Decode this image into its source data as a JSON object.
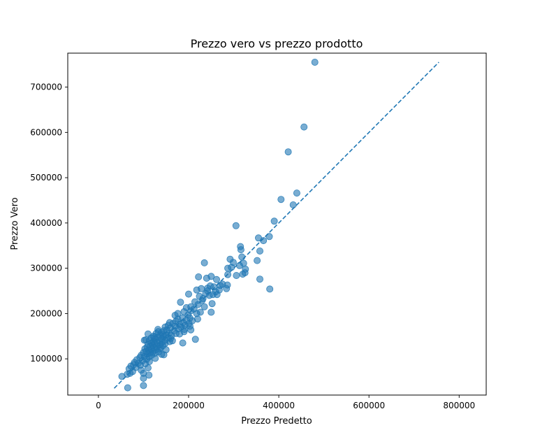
{
  "chart_data": {
    "type": "scatter",
    "title": "Prezzo vero vs prezzo prodotto",
    "xlabel": "Prezzo Predetto",
    "ylabel": "Prezzo Vero",
    "xlim": [
      -68000,
      860000
    ],
    "ylim": [
      20000,
      775000
    ],
    "xticks": [
      0,
      200000,
      400000,
      600000,
      800000
    ],
    "yticks": [
      100000,
      200000,
      300000,
      400000,
      500000,
      600000,
      700000
    ],
    "xtick_labels": [
      "0",
      "200000",
      "400000",
      "600000",
      "800000"
    ],
    "ytick_labels": [
      "100000",
      "200000",
      "300000",
      "400000",
      "500000",
      "600000",
      "700000"
    ],
    "grid": false,
    "color": "#1f77b4",
    "point_alpha": 0.6,
    "reference_line": {
      "style": "dashed",
      "from": [
        35000,
        35000
      ],
      "to": [
        755000,
        755000
      ]
    },
    "points": [
      [
        480000,
        755000
      ],
      [
        456000,
        612000
      ],
      [
        421000,
        557000
      ],
      [
        440000,
        466000
      ],
      [
        405000,
        452000
      ],
      [
        432000,
        440000
      ],
      [
        390000,
        404000
      ],
      [
        305000,
        394000
      ],
      [
        379000,
        370000
      ],
      [
        366000,
        361000
      ],
      [
        355000,
        367000
      ],
      [
        315000,
        348000
      ],
      [
        316000,
        341000
      ],
      [
        358000,
        338000
      ],
      [
        318000,
        325000
      ],
      [
        292000,
        320000
      ],
      [
        299000,
        313000
      ],
      [
        313000,
        306000
      ],
      [
        352000,
        317000
      ],
      [
        322000,
        311000
      ],
      [
        287000,
        300000
      ],
      [
        326000,
        298000
      ],
      [
        320000,
        287000
      ],
      [
        306000,
        284000
      ],
      [
        325000,
        290000
      ],
      [
        358000,
        276000
      ],
      [
        287000,
        286000
      ],
      [
        380000,
        254000
      ],
      [
        235000,
        312000
      ],
      [
        250000,
        282000
      ],
      [
        222000,
        281000
      ],
      [
        240000,
        278000
      ],
      [
        262000,
        275000
      ],
      [
        270000,
        262000
      ],
      [
        248000,
        261000
      ],
      [
        256000,
        259000
      ],
      [
        228000,
        255000
      ],
      [
        218000,
        252000
      ],
      [
        242000,
        250000
      ],
      [
        260000,
        248000
      ],
      [
        286000,
        263000
      ],
      [
        284000,
        255000
      ],
      [
        263000,
        242000
      ],
      [
        246000,
        240000
      ],
      [
        224000,
        238000
      ],
      [
        254000,
        242000
      ],
      [
        230000,
        229000
      ],
      [
        200000,
        243000
      ],
      [
        214000,
        226000
      ],
      [
        182000,
        225000
      ],
      [
        205000,
        215000
      ],
      [
        221000,
        220000
      ],
      [
        195000,
        213000
      ],
      [
        212000,
        210000
      ],
      [
        250000,
        203000
      ],
      [
        226000,
        203000
      ],
      [
        205000,
        206000
      ],
      [
        190000,
        204000
      ],
      [
        218000,
        200000
      ],
      [
        199000,
        197000
      ],
      [
        203000,
        190000
      ],
      [
        186000,
        190000
      ],
      [
        220000,
        188000
      ],
      [
        176000,
        188000
      ],
      [
        195000,
        185000
      ],
      [
        208000,
        184000
      ],
      [
        172000,
        183000
      ],
      [
        188000,
        180000
      ],
      [
        201000,
        178000
      ],
      [
        165000,
        178000
      ],
      [
        180000,
        176000
      ],
      [
        192000,
        174000
      ],
      [
        155000,
        174000
      ],
      [
        170000,
        172000
      ],
      [
        183000,
        170000
      ],
      [
        203000,
        172000
      ],
      [
        148000,
        170000
      ],
      [
        160000,
        168000
      ],
      [
        177000,
        166000
      ],
      [
        191000,
        165000
      ],
      [
        152000,
        164000
      ],
      [
        168000,
        162000
      ],
      [
        145000,
        162000
      ],
      [
        133000,
        160000
      ],
      [
        140000,
        158000
      ],
      [
        157000,
        157000
      ],
      [
        172000,
        156000
      ],
      [
        128000,
        156000
      ],
      [
        180000,
        155000
      ],
      [
        150000,
        153000
      ],
      [
        137000,
        152000
      ],
      [
        162000,
        151000
      ],
      [
        122000,
        150000
      ],
      [
        145000,
        149000
      ],
      [
        131000,
        147000
      ],
      [
        155000,
        146000
      ],
      [
        117000,
        146000
      ],
      [
        140000,
        145000
      ],
      [
        126000,
        143000
      ],
      [
        105000,
        142000
      ],
      [
        148000,
        141000
      ],
      [
        135000,
        140000
      ],
      [
        113000,
        140000
      ],
      [
        122000,
        138000
      ],
      [
        158000,
        138000
      ],
      [
        142000,
        137000
      ],
      [
        130000,
        136000
      ],
      [
        118000,
        135000
      ],
      [
        187000,
        135000
      ],
      [
        148000,
        134000
      ],
      [
        125000,
        133000
      ],
      [
        110000,
        132000
      ],
      [
        137000,
        131000
      ],
      [
        120000,
        130000
      ],
      [
        143000,
        129000
      ],
      [
        115000,
        128000
      ],
      [
        130000,
        127000
      ],
      [
        108000,
        126000
      ],
      [
        123000,
        125000
      ],
      [
        138000,
        124000
      ],
      [
        103000,
        122000
      ],
      [
        118000,
        121000
      ],
      [
        128000,
        120000
      ],
      [
        112000,
        119000
      ],
      [
        106000,
        117000
      ],
      [
        121000,
        116000
      ],
      [
        133000,
        115000
      ],
      [
        100000,
        114000
      ],
      [
        115000,
        113000
      ],
      [
        125000,
        112000
      ],
      [
        109000,
        111000
      ],
      [
        140000,
        110000
      ],
      [
        145000,
        109000
      ],
      [
        95000,
        108000
      ],
      [
        118000,
        108000
      ],
      [
        102000,
        105000
      ],
      [
        112000,
        104000
      ],
      [
        92000,
        103000
      ],
      [
        126000,
        101000
      ],
      [
        107000,
        99000
      ],
      [
        85000,
        98000
      ],
      [
        98000,
        96000
      ],
      [
        113000,
        94000
      ],
      [
        80000,
        92000
      ],
      [
        88000,
        90000
      ],
      [
        104000,
        89000
      ],
      [
        78000,
        87000
      ],
      [
        93000,
        86000
      ],
      [
        72000,
        84000
      ],
      [
        83000,
        81000
      ],
      [
        110000,
        80000
      ],
      [
        68000,
        78000
      ],
      [
        95000,
        75000
      ],
      [
        76000,
        72000
      ],
      [
        100000,
        68000
      ],
      [
        70000,
        68000
      ],
      [
        64000,
        66000
      ],
      [
        112000,
        64000
      ],
      [
        52000,
        61000
      ],
      [
        100000,
        57000
      ],
      [
        100000,
        41000
      ],
      [
        65000,
        36000
      ],
      [
        215000,
        143000
      ],
      [
        190000,
        160000
      ],
      [
        170000,
        196000
      ],
      [
        205000,
        164000
      ],
      [
        235000,
        215000
      ],
      [
        232000,
        233000
      ],
      [
        238000,
        244000
      ],
      [
        252000,
        222000
      ],
      [
        275000,
        265000
      ],
      [
        295000,
        302000
      ],
      [
        176000,
        200000
      ],
      [
        164000,
        140000
      ],
      [
        158000,
        180000
      ],
      [
        143000,
        154000
      ],
      [
        132000,
        165000
      ],
      [
        124000,
        148000
      ],
      [
        160000,
        145000
      ],
      [
        136000,
        122000
      ],
      [
        110000,
        155000
      ],
      [
        150000,
        120000
      ],
      [
        102000,
        141000
      ],
      [
        268000,
        252000
      ],
      [
        242000,
        256000
      ]
    ]
  }
}
